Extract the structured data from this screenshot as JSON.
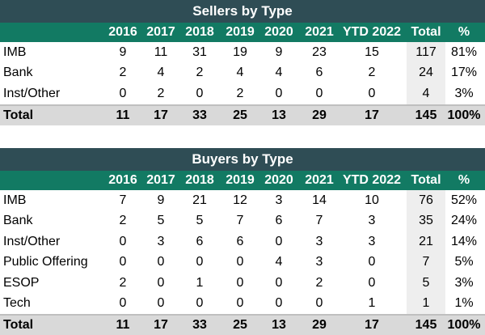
{
  "columns": [
    "2016",
    "2017",
    "2018",
    "2019",
    "2020",
    "2021",
    "YTD 2022",
    "Total",
    "%"
  ],
  "sellers": {
    "title": "Sellers by Type",
    "rows": [
      {
        "label": "IMB",
        "values": [
          "9",
          "11",
          "31",
          "19",
          "9",
          "23",
          "15",
          "117",
          "81%"
        ]
      },
      {
        "label": "Bank",
        "values": [
          "2",
          "4",
          "2",
          "4",
          "4",
          "6",
          "2",
          "24",
          "17%"
        ]
      },
      {
        "label": "Inst/Other",
        "values": [
          "0",
          "2",
          "0",
          "2",
          "0",
          "0",
          "0",
          "4",
          "3%"
        ]
      }
    ],
    "total": {
      "label": "Total",
      "values": [
        "11",
        "17",
        "33",
        "25",
        "13",
        "29",
        "17",
        "145",
        "100%"
      ]
    }
  },
  "buyers": {
    "title": "Buyers by Type",
    "rows": [
      {
        "label": "IMB",
        "values": [
          "7",
          "9",
          "21",
          "12",
          "3",
          "14",
          "10",
          "76",
          "52%"
        ]
      },
      {
        "label": "Bank",
        "values": [
          "2",
          "5",
          "5",
          "7",
          "6",
          "7",
          "3",
          "35",
          "24%"
        ]
      },
      {
        "label": "Inst/Other",
        "values": [
          "0",
          "3",
          "6",
          "6",
          "0",
          "3",
          "3",
          "21",
          "14%"
        ]
      },
      {
        "label": "Public Offering",
        "values": [
          "0",
          "0",
          "0",
          "0",
          "4",
          "3",
          "0",
          "7",
          "5%"
        ]
      },
      {
        "label": "ESOP",
        "values": [
          "2",
          "0",
          "1",
          "0",
          "0",
          "2",
          "0",
          "5",
          "3%"
        ]
      },
      {
        "label": "Tech",
        "values": [
          "0",
          "0",
          "0",
          "0",
          "0",
          "0",
          "1",
          "1",
          "1%"
        ]
      }
    ],
    "total": {
      "label": "Total",
      "values": [
        "11",
        "17",
        "33",
        "25",
        "13",
        "29",
        "17",
        "145",
        "100%"
      ]
    }
  },
  "colors": {
    "title_bg": "#2f4d55",
    "header_bg": "#127a63",
    "total_bg": "#d9d9d9",
    "total_col_bg": "#eeeeee"
  }
}
